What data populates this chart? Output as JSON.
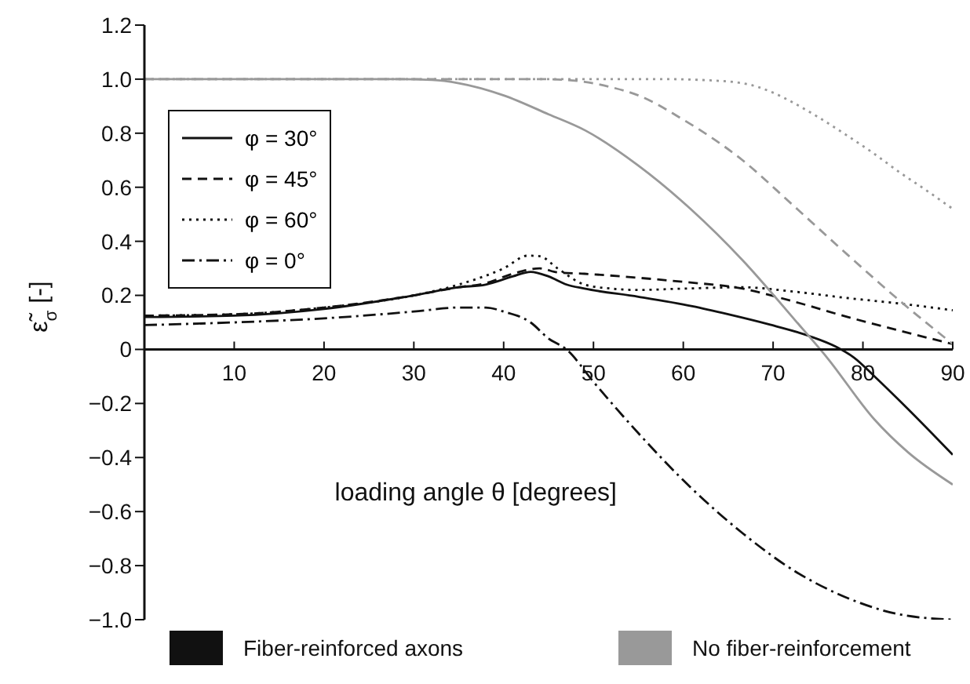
{
  "chart_data": {
    "type": "line",
    "xlabel": "loading angle θ [degrees]",
    "ylabel": "ε̃$_{σ}$ [-]",
    "xlim": [
      0,
      90
    ],
    "xticks": [
      10,
      20,
      30,
      40,
      50,
      60,
      70,
      80,
      90
    ],
    "ylim": [
      -1,
      1.2
    ],
    "yticks": [
      {
        "value": 1.2,
        "label": "1.2"
      },
      {
        "value": 1,
        "label": "1.0"
      },
      {
        "value": 0.8,
        "label": "0.8"
      },
      {
        "value": 0.6,
        "label": "0.6"
      },
      {
        "value": 0.4,
        "label": "0.4"
      },
      {
        "value": 0.2,
        "label": "0.2"
      },
      {
        "value": 0,
        "label": "0"
      },
      {
        "value": -0.2,
        "label": "−0.2"
      },
      {
        "value": -0.4,
        "label": "−0.4"
      },
      {
        "value": -0.6,
        "label": "−0.6"
      },
      {
        "value": -0.8,
        "label": "−0.8"
      },
      {
        "value": -1,
        "label": "−1.0"
      }
    ],
    "legend": "top left",
    "marker": "none",
    "annotations": [
      "Fiber-reinforced axons",
      "No fiber-reinforcement"
    ],
    "series": [
      {
        "name": "φ = 30°",
        "color": "#111111",
        "line_style": "solid",
        "x": [
          0,
          10,
          20,
          30,
          35,
          38,
          41,
          43,
          45,
          47,
          49,
          55,
          61,
          65,
          69.5,
          74,
          77,
          79,
          81.3,
          85,
          90
        ],
        "values": [
          0.12,
          0.125,
          0.15,
          0.2,
          0.23,
          0.24,
          0.27,
          0.287,
          0.27,
          0.24,
          0.225,
          0.195,
          0.16,
          0.13,
          0.093,
          0.05,
          0.01,
          -0.03,
          -0.1,
          -0.22,
          -0.39
        ]
      },
      {
        "name": "φ = 45°",
        "color": "#111111",
        "line_style": "dashed",
        "x": [
          0,
          10,
          20,
          30,
          35,
          38,
          41,
          44,
          46,
          49,
          55,
          60,
          66.6,
          72,
          78.3,
          84,
          90
        ],
        "values": [
          0.125,
          0.13,
          0.155,
          0.2,
          0.23,
          0.245,
          0.28,
          0.3,
          0.285,
          0.28,
          0.265,
          0.25,
          0.225,
          0.18,
          0.12,
          0.07,
          0.02
        ]
      },
      {
        "name": "φ = 60°",
        "color": "#111111",
        "line_style": "dotted",
        "x": [
          0,
          10,
          20,
          30,
          35,
          40,
          42.7,
          44,
          46,
          49,
          52,
          54.8,
          60,
          66.6,
          72,
          78.3,
          84,
          90
        ],
        "values": [
          0.125,
          0.13,
          0.155,
          0.2,
          0.24,
          0.3,
          0.347,
          0.345,
          0.3,
          0.24,
          0.225,
          0.22,
          0.225,
          0.23,
          0.215,
          0.19,
          0.17,
          0.145
        ]
      },
      {
        "name": "φ = 0°",
        "color": "#111111",
        "line_style": "dashdot",
        "x": [
          0,
          10,
          20,
          30,
          35,
          38,
          40,
          43,
          45,
          47,
          50,
          55,
          60.8,
          66.6,
          72.4,
          78.3,
          84,
          90
        ],
        "values": [
          0.09,
          0.1,
          0.115,
          0.14,
          0.155,
          0.155,
          0.14,
          0.1,
          0.04,
          0,
          -0.12,
          -0.31,
          -0.51,
          -0.68,
          -0.82,
          -0.92,
          -0.98,
          -1
        ]
      },
      {
        "color": "#999999",
        "line_style": "solid",
        "x": [
          0,
          10,
          20,
          28,
          32,
          35,
          40,
          45,
          49.1,
          55,
          60.8,
          66.6,
          72.4,
          76,
          81.3,
          85,
          90
        ],
        "values": [
          1,
          1,
          1,
          1,
          0.997,
          0.985,
          0.94,
          0.87,
          0.81,
          0.68,
          0.52,
          0.33,
          0.11,
          -0.03,
          -0.26,
          -0.38,
          -0.5
        ]
      },
      {
        "color": "#999999",
        "line_style": "dashed",
        "x": [
          0,
          10,
          20,
          30,
          40,
          44,
          47,
          49,
          52,
          55,
          60,
          66.6,
          72,
          78.3,
          84.1,
          90
        ],
        "values": [
          1,
          1,
          1,
          1,
          1,
          1,
          0.997,
          0.99,
          0.97,
          0.94,
          0.85,
          0.7,
          0.54,
          0.35,
          0.18,
          0.02
        ]
      },
      {
        "color": "#999999",
        "line_style": "dotted",
        "x": [
          0,
          10,
          20,
          30,
          40,
          50,
          58,
          62,
          66.6,
          70,
          72.4,
          75,
          78.3,
          81,
          84.1,
          87,
          90
        ],
        "values": [
          1,
          1,
          1,
          1,
          1,
          1,
          1,
          0.997,
          0.985,
          0.95,
          0.91,
          0.86,
          0.79,
          0.73,
          0.655,
          0.59,
          0.52
        ]
      }
    ]
  }
}
